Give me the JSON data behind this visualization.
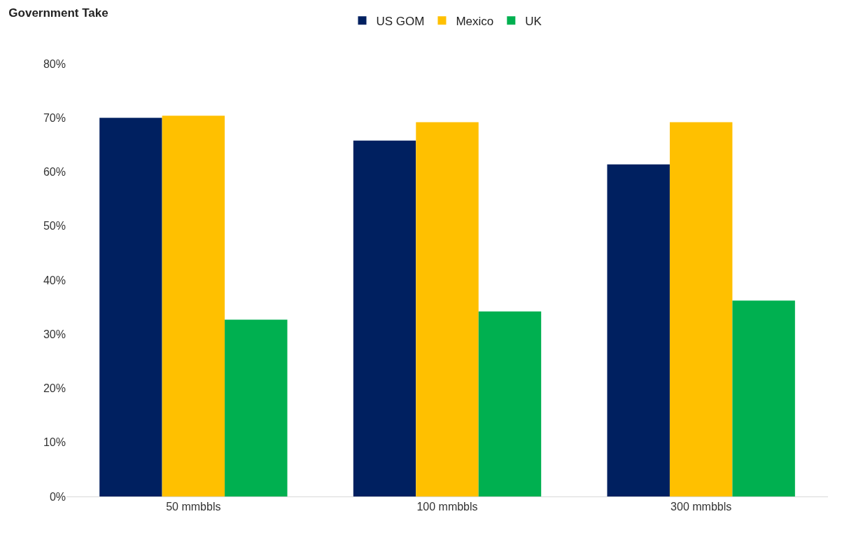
{
  "chart_data": {
    "type": "bar",
    "title": "Government Take",
    "categories": [
      "50 mmbbls",
      "100 mmbbls",
      "300 mmbbls"
    ],
    "series": [
      {
        "name": "US GOM",
        "color": "#002060",
        "values": [
          70,
          65.8,
          61.4
        ]
      },
      {
        "name": "Mexico",
        "color": "#ffc000",
        "values": [
          70.4,
          69.2,
          69.2
        ]
      },
      {
        "name": "UK",
        "color": "#00b050",
        "values": [
          32.7,
          34.2,
          36.2
        ]
      }
    ],
    "ylim": [
      0,
      80
    ],
    "yticks": [
      {
        "value": 0,
        "label": "0%"
      },
      {
        "value": 10,
        "label": "10%"
      },
      {
        "value": 20,
        "label": "20%"
      },
      {
        "value": 30,
        "label": "30%"
      },
      {
        "value": 40,
        "label": "40%"
      },
      {
        "value": 50,
        "label": "50%"
      },
      {
        "value": 60,
        "label": "60%"
      },
      {
        "value": 70,
        "label": "70%"
      },
      {
        "value": 80,
        "label": "80%"
      }
    ],
    "grid": false,
    "legend": "top"
  }
}
